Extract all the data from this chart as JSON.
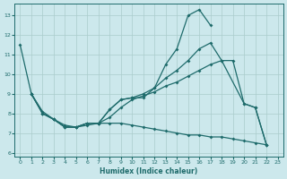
{
  "xlabel": "Humidex (Indice chaleur)",
  "bg_color": "#cce8ec",
  "line_color": "#1e6b6b",
  "grid_color": "#aacccc",
  "xlim": [
    -0.5,
    23.5
  ],
  "ylim": [
    5.8,
    13.6
  ],
  "yticks": [
    6,
    7,
    8,
    9,
    10,
    11,
    12,
    13
  ],
  "xticks": [
    0,
    1,
    2,
    3,
    4,
    5,
    6,
    7,
    8,
    9,
    10,
    11,
    12,
    13,
    14,
    15,
    16,
    17,
    18,
    19,
    20,
    21,
    22,
    23
  ],
  "line1_x": [
    0,
    1,
    2,
    3,
    4,
    5,
    6,
    7,
    8,
    9,
    10,
    11,
    12,
    13,
    14,
    15,
    16,
    17
  ],
  "line1_y": [
    11.5,
    9.0,
    8.0,
    7.7,
    7.3,
    7.3,
    7.5,
    7.5,
    8.2,
    8.7,
    8.8,
    8.8,
    9.3,
    10.5,
    11.3,
    13.0,
    13.3,
    12.5
  ],
  "line2_x": [
    1,
    2,
    3,
    4,
    5,
    6,
    7,
    8,
    9,
    10,
    11,
    12,
    13,
    14,
    15,
    16,
    17,
    18,
    20,
    21,
    22
  ],
  "line2_y": [
    9.0,
    8.0,
    7.7,
    7.3,
    7.3,
    7.5,
    7.5,
    8.2,
    8.7,
    8.8,
    9.0,
    9.3,
    9.8,
    10.2,
    10.7,
    11.3,
    11.6,
    10.7,
    8.5,
    8.3,
    6.4
  ],
  "line3_x": [
    1,
    2,
    3,
    4,
    5,
    6,
    7,
    8,
    9,
    10,
    11,
    12,
    13,
    14,
    15,
    16,
    17,
    18,
    19,
    20,
    21,
    22
  ],
  "line3_y": [
    9.0,
    8.0,
    7.7,
    7.3,
    7.3,
    7.5,
    7.5,
    7.8,
    8.3,
    8.7,
    8.9,
    9.1,
    9.4,
    9.6,
    9.9,
    10.2,
    10.5,
    10.7,
    10.7,
    8.5,
    8.3,
    6.4
  ],
  "line4_x": [
    1,
    2,
    3,
    4,
    5,
    6,
    7,
    8,
    9,
    10,
    11,
    12,
    13,
    14,
    15,
    16,
    17,
    18,
    19,
    20,
    21,
    22
  ],
  "line4_y": [
    9.0,
    8.1,
    7.7,
    7.4,
    7.3,
    7.4,
    7.5,
    7.5,
    7.5,
    7.4,
    7.3,
    7.2,
    7.1,
    7.0,
    6.9,
    6.9,
    6.8,
    6.8,
    6.7,
    6.6,
    6.5,
    6.4
  ]
}
